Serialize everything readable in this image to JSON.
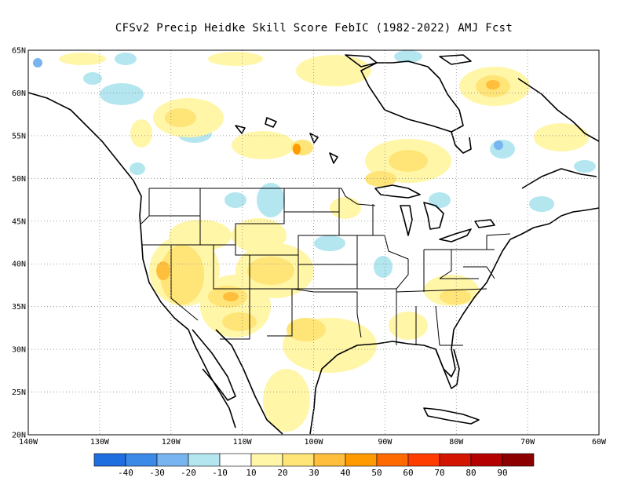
{
  "title": "CFSv2 Precip Heidke Skill Score FebIC (1982-2022) AMJ Fcst",
  "map": {
    "lat_range": [
      20,
      65
    ],
    "lon_range": [
      -140,
      -60
    ],
    "lat_ticks": [
      {
        "value": 20,
        "label": "20N"
      },
      {
        "value": 25,
        "label": "25N"
      },
      {
        "value": 30,
        "label": "30N"
      },
      {
        "value": 35,
        "label": "35N"
      },
      {
        "value": 40,
        "label": "40N"
      },
      {
        "value": 45,
        "label": "45N"
      },
      {
        "value": 50,
        "label": "50N"
      },
      {
        "value": 55,
        "label": "55N"
      },
      {
        "value": 60,
        "label": "60N"
      },
      {
        "value": 65,
        "label": "65N"
      }
    ],
    "lon_ticks": [
      {
        "value": -140,
        "label": "140W"
      },
      {
        "value": -130,
        "label": "130W"
      },
      {
        "value": -120,
        "label": "120W"
      },
      {
        "value": -110,
        "label": "110W"
      },
      {
        "value": -100,
        "label": "100W"
      },
      {
        "value": -90,
        "label": "90W"
      },
      {
        "value": -80,
        "label": "80W"
      },
      {
        "value": -70,
        "label": "70W"
      },
      {
        "value": -60,
        "label": "60W"
      }
    ],
    "grid": true,
    "land_outline_color": "#000000",
    "background_color": "#ffffff"
  },
  "colorbar": {
    "labels": [
      "-40",
      "-30",
      "-20",
      "-10",
      "10",
      "20",
      "30",
      "40",
      "50",
      "60",
      "70",
      "80",
      "90"
    ],
    "colors": [
      "#1e6ee0",
      "#3c8ae8",
      "#78b4f0",
      "#b4e6f0",
      "#ffffff",
      "#fff6a8",
      "#ffe478",
      "#ffbe3c",
      "#ff9a00",
      "#ff6a00",
      "#ff3c00",
      "#d21400",
      "#b40000",
      "#8c0000"
    ]
  }
}
